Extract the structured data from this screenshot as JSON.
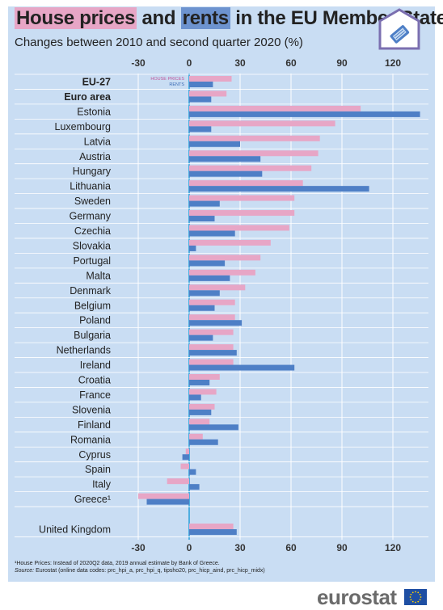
{
  "header": {
    "title_part1": "House prices",
    "title_part2": " and ",
    "title_part3": "rents",
    "title_part4": " in the EU Member States",
    "subtitle": "Changes between 2010 and second quarter 2020 (%)"
  },
  "colors": {
    "house_prices": "#e7a6c6",
    "rents": "#4e7fc6",
    "panel": "#c9ddf3",
    "gridline": "#ffffff",
    "zeroline": "#1b9bd7"
  },
  "chart_data": {
    "type": "bar",
    "orientation": "horizontal",
    "xlim": [
      -30,
      135
    ],
    "xticks": [
      -30,
      0,
      30,
      60,
      90,
      120
    ],
    "grid": true,
    "legend_placement": "beside EU-27 bars",
    "series": [
      {
        "name": "HOUSE PRICES",
        "color": "#e7a6c6"
      },
      {
        "name": "RENTS",
        "color": "#4e7fc6"
      }
    ],
    "categories": [
      {
        "label": "EU-27",
        "bold": true,
        "house_prices": 25,
        "rents": 14
      },
      {
        "label": "Euro area",
        "bold": true,
        "house_prices": 22,
        "rents": 13
      },
      {
        "label": "Estonia",
        "house_prices": 101,
        "rents": 136
      },
      {
        "label": "Luxembourg",
        "house_prices": 86,
        "rents": 13
      },
      {
        "label": "Latvia",
        "house_prices": 77,
        "rents": 30
      },
      {
        "label": "Austria",
        "house_prices": 76,
        "rents": 42
      },
      {
        "label": "Hungary",
        "house_prices": 72,
        "rents": 43
      },
      {
        "label": "Lithuania",
        "house_prices": 67,
        "rents": 106
      },
      {
        "label": "Sweden",
        "house_prices": 62,
        "rents": 18
      },
      {
        "label": "Germany",
        "house_prices": 62,
        "rents": 15
      },
      {
        "label": "Czechia",
        "house_prices": 59,
        "rents": 27
      },
      {
        "label": "Slovakia",
        "house_prices": 48,
        "rents": 4
      },
      {
        "label": "Portugal",
        "house_prices": 42,
        "rents": 21
      },
      {
        "label": "Malta",
        "house_prices": 39,
        "rents": 24
      },
      {
        "label": "Denmark",
        "house_prices": 33,
        "rents": 18
      },
      {
        "label": "Belgium",
        "house_prices": 27,
        "rents": 15
      },
      {
        "label": "Poland",
        "house_prices": 27,
        "rents": 31
      },
      {
        "label": "Bulgaria",
        "house_prices": 26,
        "rents": 14
      },
      {
        "label": "Netherlands",
        "house_prices": 26,
        "rents": 28
      },
      {
        "label": "Ireland",
        "house_prices": 26,
        "rents": 62
      },
      {
        "label": "Croatia",
        "house_prices": 18,
        "rents": 12
      },
      {
        "label": "France",
        "house_prices": 16,
        "rents": 7
      },
      {
        "label": "Slovenia",
        "house_prices": 15,
        "rents": 13
      },
      {
        "label": "Finland",
        "house_prices": 12,
        "rents": 29
      },
      {
        "label": "Romania",
        "house_prices": 8,
        "rents": 17
      },
      {
        "label": "Cyprus",
        "house_prices": -2,
        "rents": -4
      },
      {
        "label": "Spain",
        "house_prices": -5,
        "rents": 4
      },
      {
        "label": "Italy",
        "house_prices": -13,
        "rents": 6
      },
      {
        "label": "Greece¹",
        "house_prices": -30,
        "rents": -25
      },
      {
        "label": "United Kingdom",
        "house_prices": 26,
        "rents": 28,
        "separated": true
      }
    ]
  },
  "footer": {
    "footnote": "¹House Prices: Instead of 2020Q2 data, 2019 annual estimate by Bank of Greece.",
    "source_label": "Source:",
    "source_text": " Eurostat (online data codes: prc_hpi_a, prc_hpi_q, tipsho20, prc_hicp_aind, prc_hicp_midx)",
    "brand": "eurostat"
  }
}
